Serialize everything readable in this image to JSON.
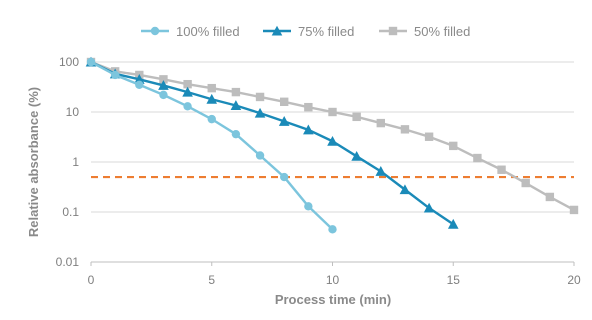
{
  "chart_data": {
    "type": "line",
    "title": "",
    "xlabel": "Process time (min)",
    "ylabel": "Relative absorbance (%)",
    "xlim": [
      0,
      20
    ],
    "ylim": [
      0.01,
      100
    ],
    "y_scale": "log",
    "grid": "horizontal",
    "legend_position": "top",
    "x_ticks": [
      "0",
      "5",
      "10",
      "15",
      "20"
    ],
    "y_ticks": [
      "0.01",
      "0.1",
      "1",
      "10",
      "100"
    ],
    "series": [
      {
        "name": "100% filled",
        "color": "#7cc5dd",
        "marker": "circle",
        "x": [
          0,
          1,
          2,
          3,
          4,
          5,
          6,
          7,
          8,
          9,
          10
        ],
        "y": [
          100,
          55,
          35,
          22,
          13,
          7.2,
          3.6,
          1.35,
          0.5,
          0.13,
          0.045
        ]
      },
      {
        "name": "75% filled",
        "color": "#1a8ab8",
        "marker": "triangle",
        "x": [
          0,
          1,
          2,
          3,
          4,
          5,
          6,
          7,
          8,
          9,
          10,
          11,
          12,
          13,
          14,
          15
        ],
        "y": [
          100,
          58,
          45,
          34,
          25,
          18,
          13.5,
          9.5,
          6.5,
          4.4,
          2.6,
          1.3,
          0.65,
          0.28,
          0.12,
          0.057
        ]
      },
      {
        "name": "50% filled",
        "color": "#bdbdbd",
        "marker": "square",
        "x": [
          0,
          1,
          2,
          3,
          4,
          5,
          6,
          7,
          8,
          9,
          10,
          11,
          12,
          13,
          14,
          15,
          16,
          17,
          18,
          19,
          20
        ],
        "y": [
          100,
          65,
          55,
          45,
          36,
          30,
          25,
          20,
          16,
          12.5,
          10,
          8,
          6,
          4.5,
          3.2,
          2.1,
          1.2,
          0.7,
          0.38,
          0.2,
          0.11
        ]
      }
    ],
    "threshold": {
      "y": 0.5,
      "color": "#ed7d31",
      "style": "dashed"
    }
  }
}
